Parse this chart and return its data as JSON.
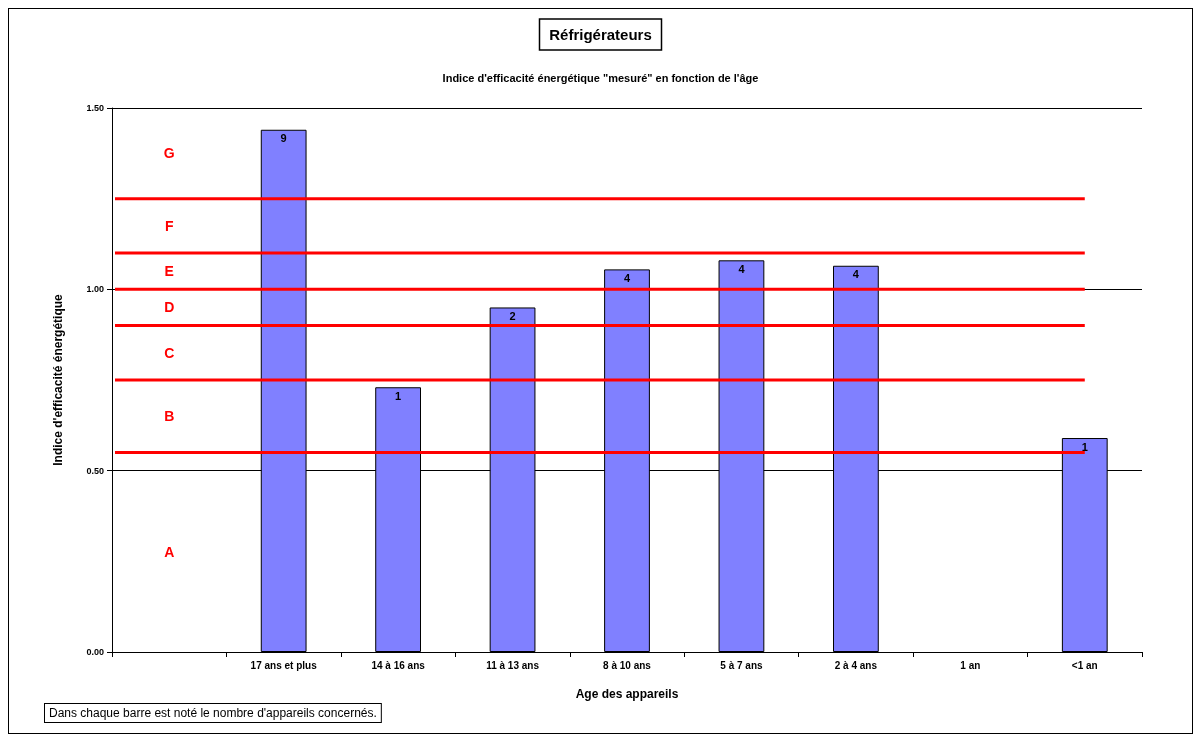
{
  "chart_data": {
    "type": "bar",
    "title": "Réfrigérateurs",
    "subtitle": "Indice d'efficacité énergétique \"mesuré\" en fonction de l'âge",
    "xlabel": "Age des appareils",
    "ylabel": "Indice d'efficacité énergétique",
    "categories": [
      null,
      "17 ans et plus",
      "14 à 16 ans",
      "11 à 13 ans",
      "8 à 10 ans",
      "5 à 7 ans",
      "2 à 4 ans",
      "1 an",
      "<1 an"
    ],
    "values": [
      null,
      1.44,
      0.73,
      0.95,
      1.055,
      1.08,
      1.065,
      null,
      0.59
    ],
    "color": "#8080ff",
    "ylim": [
      0,
      1.5
    ],
    "yticks": [
      {
        "value": 0,
        "label": "0.00"
      },
      {
        "value": 0.5,
        "label": "0.50"
      },
      {
        "value": 1,
        "label": "1.00"
      },
      {
        "value": 1.5,
        "label": "1.50"
      }
    ],
    "grid": "y",
    "ref_lines": [
      {
        "axis": "y",
        "value": 1.25,
        "color": "#ff0000"
      },
      {
        "axis": "y",
        "value": 1.1,
        "color": "#ff0000"
      },
      {
        "axis": "y",
        "value": 1.0,
        "color": "#ff0000"
      },
      {
        "axis": "y",
        "value": 0.9,
        "color": "#ff0000"
      },
      {
        "axis": "y",
        "value": 0.75,
        "color": "#ff0000"
      },
      {
        "axis": "y",
        "value": 0.55,
        "color": "#ff0000"
      }
    ],
    "annotations": [
      "G",
      "F",
      "E",
      "D",
      "C",
      "B",
      "A",
      {
        "text": "9",
        "x": "17 ans et plus",
        "y": 1.44
      },
      {
        "text": "1",
        "x": "14 à 16 ans",
        "y": 0.73
      },
      {
        "text": "2",
        "x": "11 à 13 ans",
        "y": 0.95
      },
      {
        "text": "4",
        "x": "8 à 10 ans",
        "y": 1.055
      },
      {
        "text": "4",
        "x": "5 à 7 ans",
        "y": 1.08
      },
      {
        "text": "4",
        "x": "2 à 4 ans",
        "y": 1.065
      },
      {
        "text": "1",
        "x": "<1 an",
        "y": 0.59
      },
      "Dans chaque barre est noté le nombre d'appareils concernés."
    ]
  }
}
